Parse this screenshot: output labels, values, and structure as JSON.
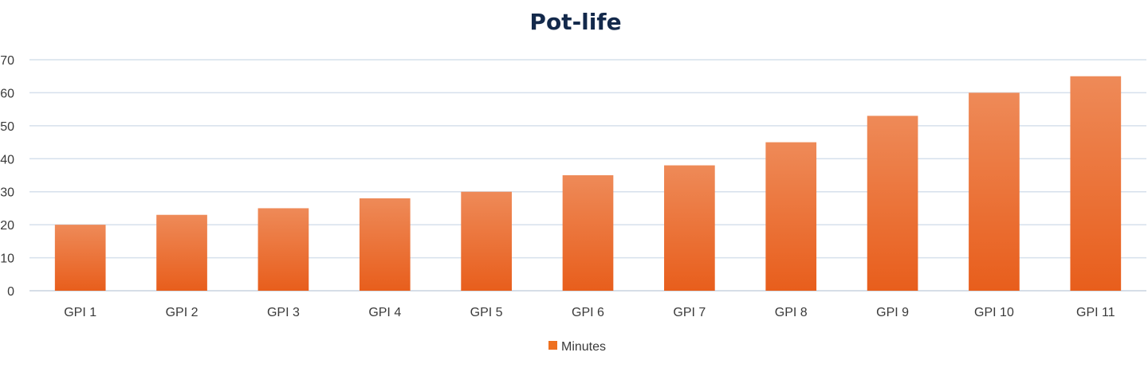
{
  "chart_data": {
    "type": "bar",
    "title": "Pot-life",
    "xlabel": "",
    "ylabel": "",
    "categories": [
      "GPI 1",
      "GPI 2",
      "GPI 3",
      "GPI 4",
      "GPI 5",
      "GPI 6",
      "GPI 7",
      "GPI 8",
      "GPI 9",
      "GPI 10",
      "GPI 11"
    ],
    "series": [
      {
        "name": "Minutes",
        "values": [
          20,
          23,
          25,
          28,
          30,
          35,
          38,
          45,
          53,
          60,
          65
        ],
        "color": "#ee7020"
      }
    ],
    "ylim": [
      0,
      70
    ],
    "yticks": [
      0,
      10,
      20,
      30,
      40,
      50,
      60,
      70
    ],
    "grid": true,
    "legend": "bottom-center",
    "colors": {
      "bar_top": "#ee8a58",
      "bar_bottom": "#e85e1c",
      "grid": "#d6e0ec",
      "axis": "#c9d3df",
      "title": "#13294b",
      "text": "#3a3a3a"
    }
  }
}
